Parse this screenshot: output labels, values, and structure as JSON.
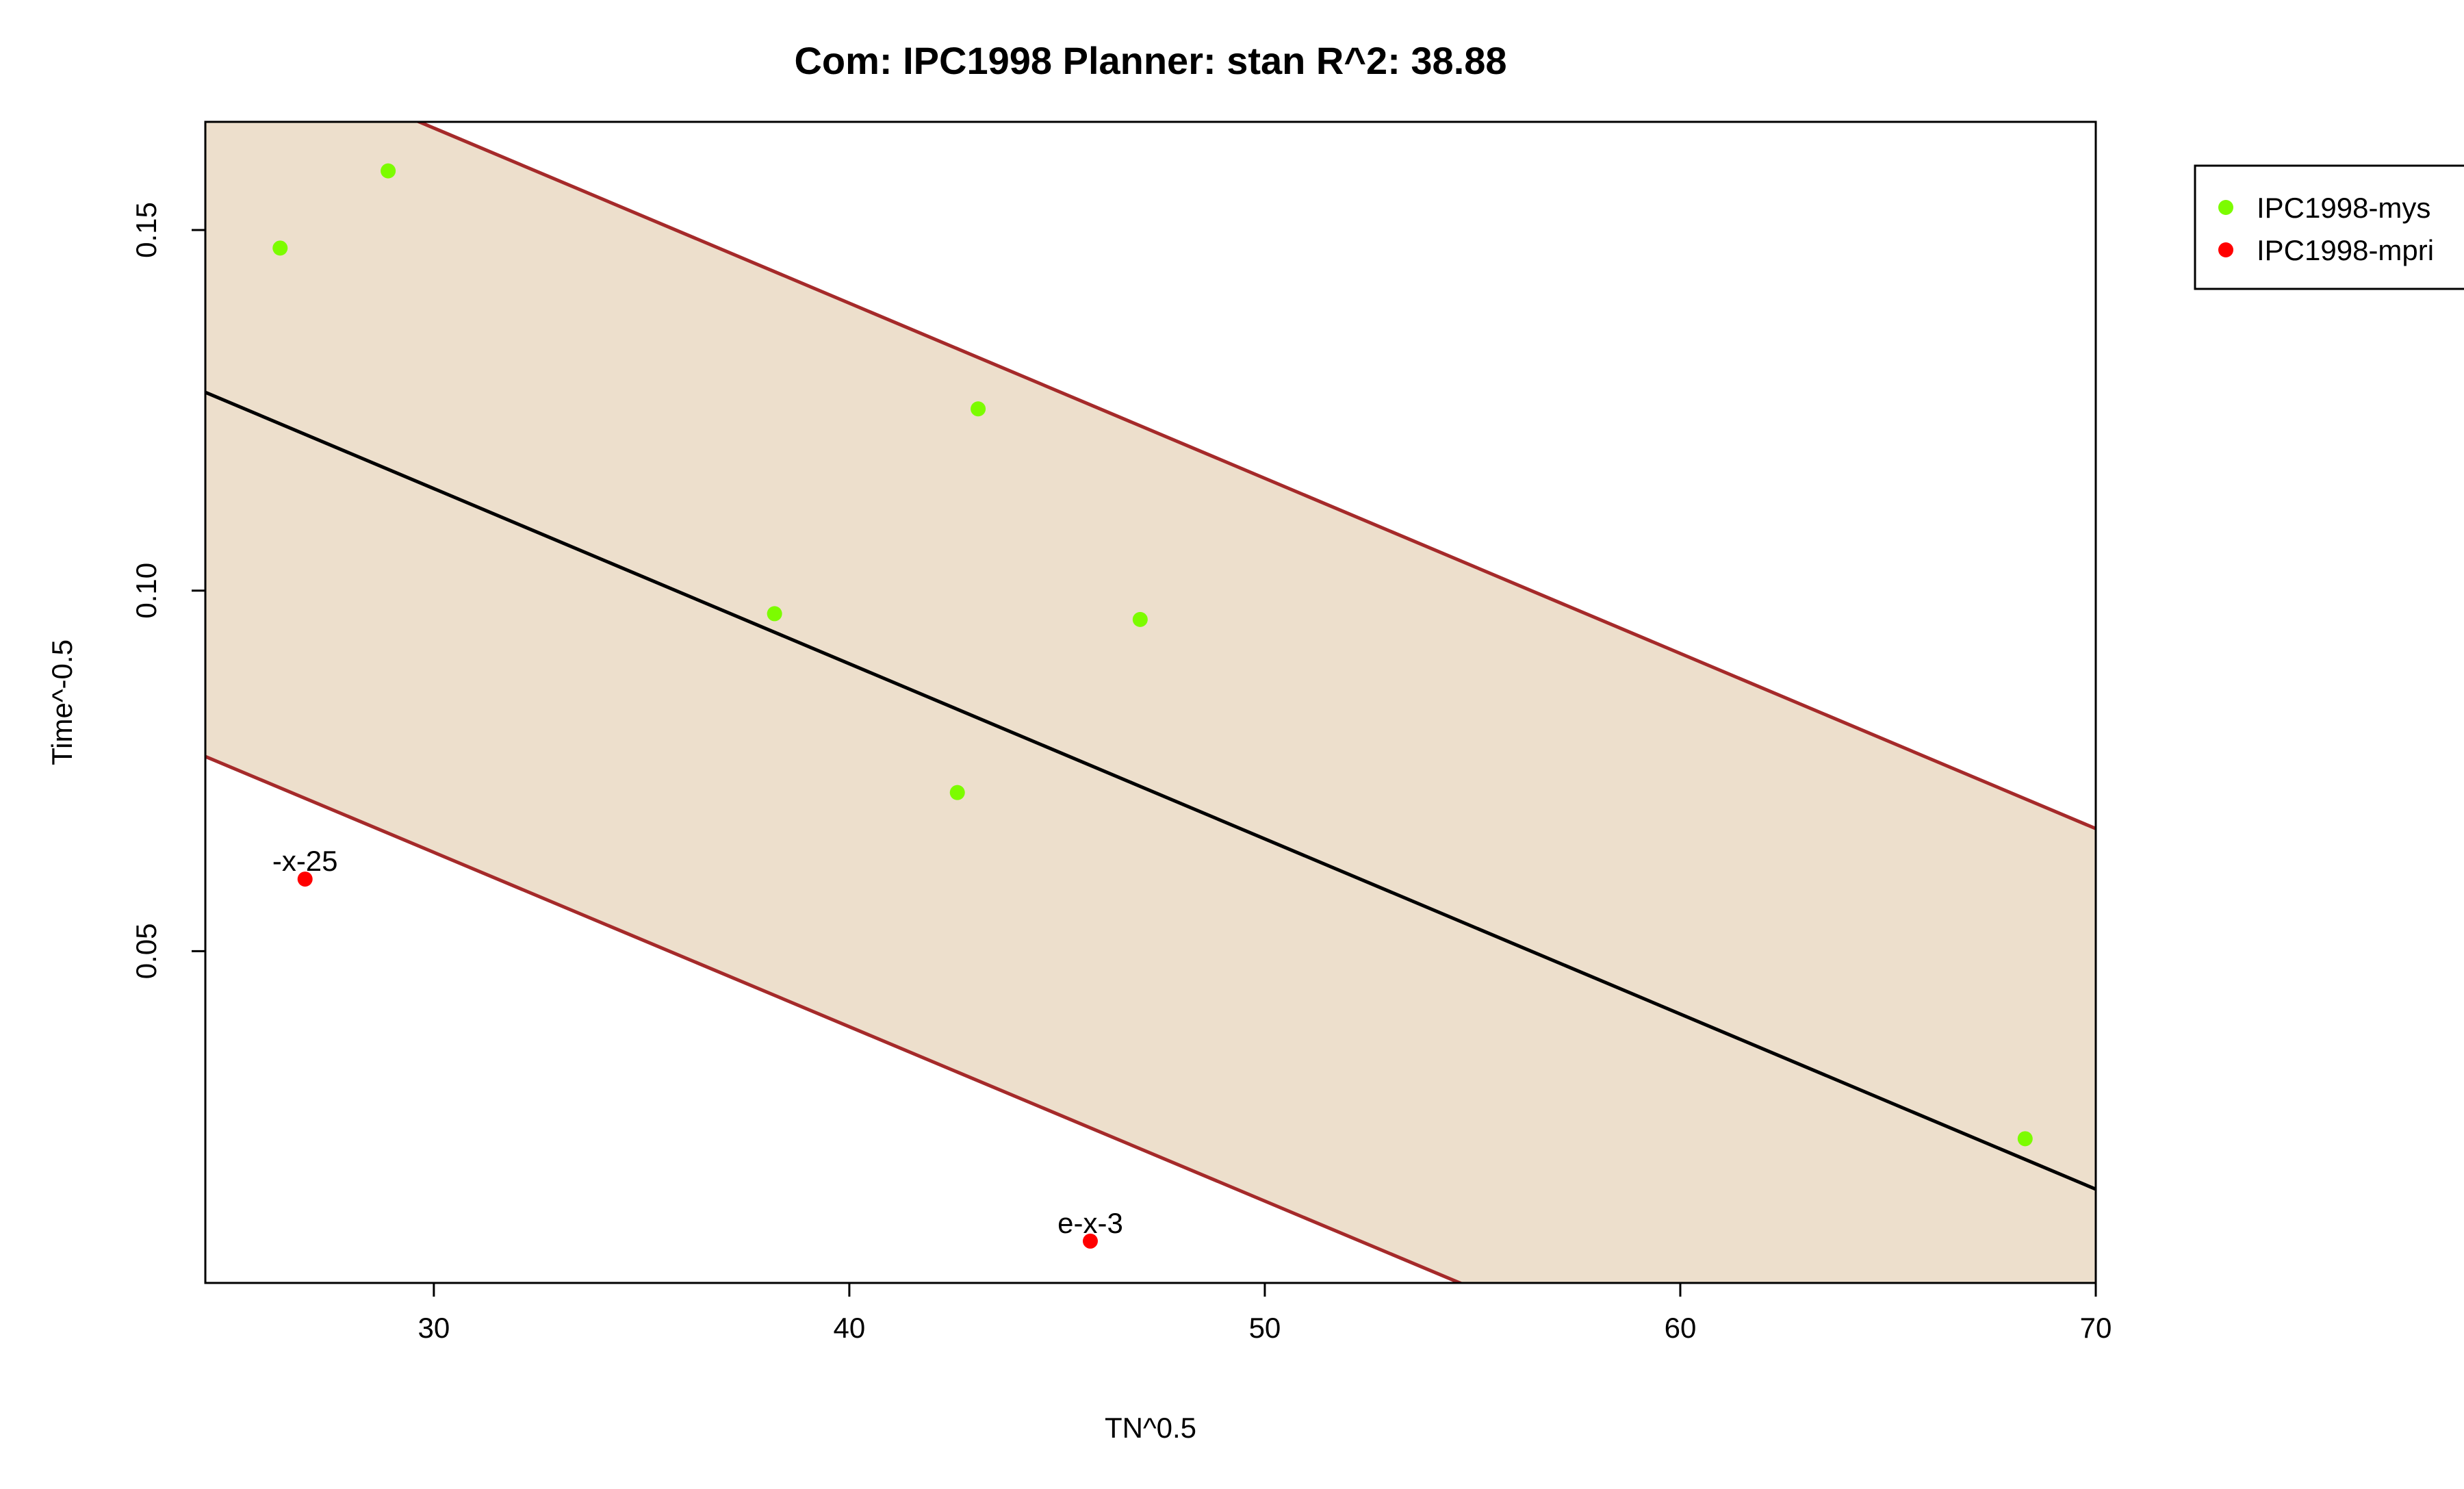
{
  "chart_data": {
    "type": "scatter",
    "title": "Com: IPC1998 Planner: stan R^2: 38.88",
    "xlabel": "TN^0.5",
    "ylabel": "Time^-0.5",
    "xlim": [
      24.5,
      70
    ],
    "ylim": [
      0.004,
      0.165
    ],
    "xticks": [
      30,
      40,
      50,
      60,
      70
    ],
    "xtick_labels": [
      "30",
      "40",
      "50",
      "60",
      "70"
    ],
    "yticks": [
      0.05,
      0.1,
      0.15
    ],
    "ytick_labels": [
      "0.05",
      "0.10",
      "0.15"
    ],
    "grid": false,
    "legend_position": "right, outside plot (top)",
    "series": [
      {
        "name": "IPC1998-mys",
        "color": "#7cfc00",
        "points": [
          {
            "x": 26.3,
            "y": 0.1475
          },
          {
            "x": 28.9,
            "y": 0.1582
          },
          {
            "x": 38.2,
            "y": 0.0968
          },
          {
            "x": 42.6,
            "y": 0.072
          },
          {
            "x": 43.1,
            "y": 0.1252
          },
          {
            "x": 47.0,
            "y": 0.096
          },
          {
            "x": 68.3,
            "y": 0.024
          }
        ]
      },
      {
        "name": "IPC1998-mpri",
        "color": "#ff0000",
        "points": [
          {
            "x": 26.9,
            "y": 0.06,
            "label": "-x-25"
          },
          {
            "x": 45.8,
            "y": 0.0098,
            "label": "e-x-3"
          }
        ]
      }
    ],
    "regression": {
      "color": "#000000",
      "points": [
        [
          24.5,
          0.1275
        ],
        [
          70,
          0.017
        ]
      ]
    },
    "prediction_band": {
      "fill_color": "#eddfcc",
      "line_color": "#a52a2a",
      "upper": [
        [
          24.5,
          0.1775
        ],
        [
          70,
          0.067
        ]
      ],
      "lower": [
        [
          24.5,
          0.077
        ],
        [
          70,
          -0.033
        ]
      ]
    }
  }
}
